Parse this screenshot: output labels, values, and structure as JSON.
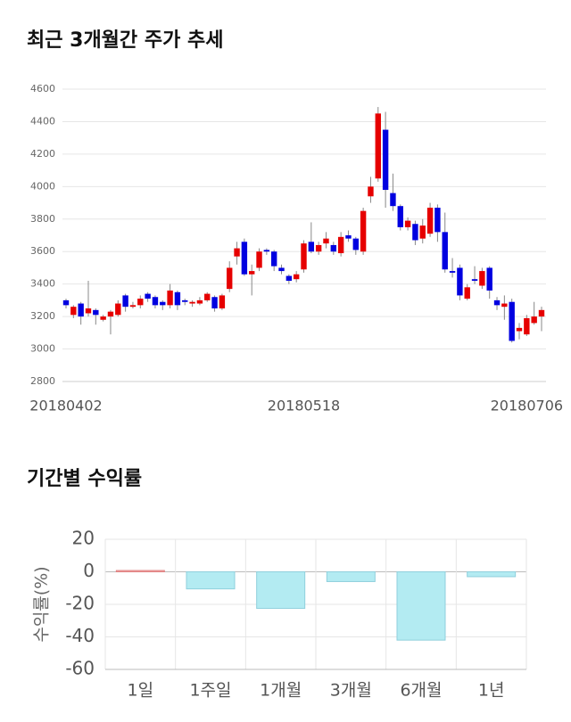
{
  "chart_data": [
    {
      "type": "candlestick",
      "title": "최근 3개월간 주가 추세",
      "categories": [
        "20180402",
        null,
        null,
        null,
        null,
        null,
        null,
        null,
        null,
        null,
        null,
        null,
        null,
        null,
        null,
        null,
        null,
        null,
        null,
        null,
        null,
        null,
        null,
        null,
        null,
        null,
        null,
        null,
        null,
        null,
        null,
        null,
        "20180518",
        null,
        null,
        null,
        null,
        null,
        null,
        null,
        null,
        null,
        null,
        null,
        null,
        null,
        null,
        null,
        null,
        null,
        null,
        null,
        null,
        null,
        null,
        null,
        null,
        null,
        null,
        null,
        null,
        null,
        "20180706",
        null,
        null
      ],
      "open": [
        3300,
        3210,
        3280,
        3220,
        3240,
        3180,
        3200,
        3210,
        3330,
        3260,
        3270,
        3340,
        3320,
        3290,
        3270,
        3350,
        3300,
        3280,
        3280,
        3300,
        3320,
        3250,
        3370,
        3570,
        3660,
        3460,
        3500,
        3610,
        3600,
        3500,
        3450,
        3430,
        3490,
        3660,
        3600,
        3650,
        3640,
        3590,
        3700,
        3680,
        3600,
        3940,
        4050,
        4350,
        3960,
        3880,
        3750,
        3770,
        3680,
        3710,
        3870,
        3720,
        3480,
        3500,
        3310,
        3430,
        3390,
        3500,
        3300,
        3260,
        3290,
        3110,
        3090,
        3160,
        3200
      ],
      "high": [
        3310,
        3270,
        3290,
        3420,
        3250,
        3210,
        3240,
        3300,
        3340,
        3290,
        3330,
        3350,
        3330,
        3300,
        3400,
        3360,
        3310,
        3300,
        3320,
        3350,
        3330,
        3340,
        3540,
        3660,
        3680,
        3520,
        3620,
        3620,
        3610,
        3520,
        3460,
        3480,
        3670,
        3780,
        3660,
        3720,
        3660,
        3720,
        3730,
        3690,
        3870,
        4060,
        4490,
        4460,
        4080,
        3890,
        3810,
        3790,
        3800,
        3900,
        3890,
        3840,
        3560,
        3520,
        3400,
        3510,
        3500,
        3510,
        3320,
        3330,
        3310,
        3160,
        3210,
        3290,
        3260
      ],
      "low": [
        3250,
        3190,
        3150,
        3200,
        3150,
        3170,
        3090,
        3200,
        3230,
        3250,
        3250,
        3290,
        3250,
        3240,
        3250,
        3240,
        3270,
        3260,
        3270,
        3290,
        3230,
        3240,
        3350,
        3520,
        3450,
        3330,
        3480,
        3580,
        3480,
        3460,
        3400,
        3410,
        3470,
        3590,
        3580,
        3620,
        3580,
        3570,
        3660,
        3580,
        3580,
        3900,
        4030,
        3870,
        3850,
        3730,
        3730,
        3640,
        3650,
        3690,
        3660,
        3470,
        3440,
        3300,
        3300,
        3400,
        3370,
        3310,
        3240,
        3180,
        3040,
        3060,
        3080,
        3150,
        3110
      ],
      "close": [
        3270,
        3260,
        3200,
        3250,
        3210,
        3200,
        3230,
        3280,
        3260,
        3270,
        3310,
        3310,
        3270,
        3270,
        3360,
        3270,
        3290,
        3290,
        3300,
        3340,
        3250,
        3330,
        3500,
        3620,
        3460,
        3480,
        3600,
        3600,
        3510,
        3480,
        3420,
        3460,
        3650,
        3600,
        3640,
        3680,
        3600,
        3690,
        3680,
        3610,
        3850,
        4000,
        4450,
        3980,
        3880,
        3750,
        3790,
        3670,
        3760,
        3870,
        3720,
        3490,
        3470,
        3330,
        3380,
        3420,
        3480,
        3360,
        3270,
        3280,
        3050,
        3130,
        3190,
        3200,
        3240
      ],
      "up_color": "#e60000",
      "down_color": "#0000e0",
      "ylim": [
        2800,
        4600
      ],
      "yticks": [
        2800,
        3000,
        3200,
        3400,
        3600,
        3800,
        4000,
        4200,
        4400,
        4600
      ],
      "grid": true
    },
    {
      "type": "bar",
      "title": "기간별 수익률",
      "y_label": "수익률(%)",
      "categories": [
        "1일",
        "1주일",
        "1개월",
        "3개월",
        "6개월",
        "1년"
      ],
      "values": [
        0.8,
        -10.5,
        -22.5,
        -6,
        -42,
        -3
      ],
      "positive_color": "#f4b0b0",
      "negative_color": "#b3ebf2",
      "ylim": [
        -60,
        20
      ],
      "yticks": [
        -60,
        -40,
        -20,
        0,
        20
      ],
      "grid": true
    }
  ]
}
